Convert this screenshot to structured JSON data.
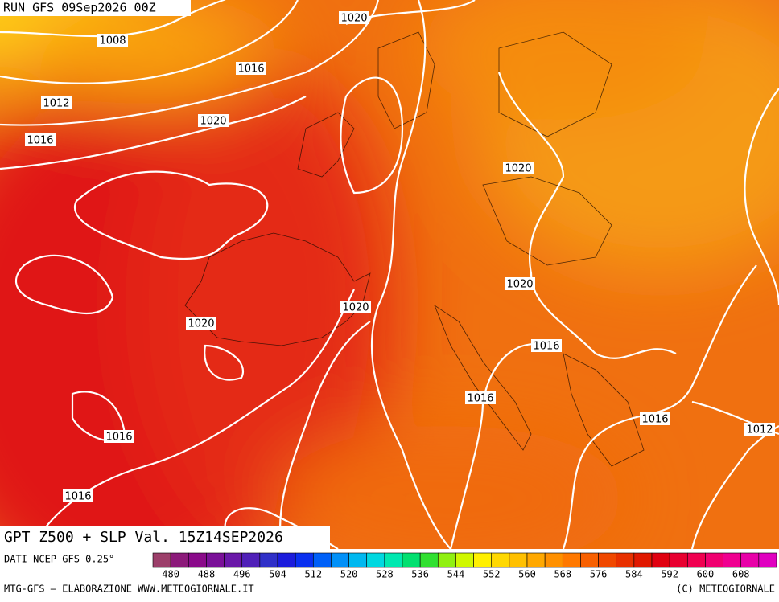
{
  "header": {
    "run": "RUN GFS 09Sep2026 00Z",
    "title": "GPT Z500 + SLP Val. 15Z14SEP2026"
  },
  "isobar_labels": [
    1020,
    1008,
    1016,
    1012,
    1020,
    1016,
    1020,
    1020,
    1020,
    1020,
    1016,
    1016,
    1016,
    1012,
    1016,
    1016
  ],
  "colorbar": {
    "caption": "DATI NCEP GFS 0.25°",
    "colors": [
      "#9c3f6a",
      "#8c1a7a",
      "#8a0a8a",
      "#7a1098",
      "#6a18a8",
      "#5020b8",
      "#3030c8",
      "#1c1cdc",
      "#0a30f0",
      "#0060f8",
      "#0090f8",
      "#00b8f0",
      "#00d8e0",
      "#00e8b0",
      "#00e070",
      "#30e030",
      "#90f010",
      "#d0f800",
      "#fff000",
      "#ffd800",
      "#ffc000",
      "#ffa800",
      "#ff9000",
      "#ff7800",
      "#f86000",
      "#f04800",
      "#e83000",
      "#e01800",
      "#e00010",
      "#e80030",
      "#f00050",
      "#f00070",
      "#f00090",
      "#e800a8",
      "#e000c0"
    ],
    "ticks": [
      480,
      488,
      496,
      504,
      512,
      520,
      528,
      536,
      544,
      552,
      560,
      568,
      576,
      584,
      592,
      600,
      608
    ]
  },
  "footer": {
    "left": "MTG-GFS — ELABORAZIONE WWW.METEOGIORNALE.IT",
    "right": "(C) METEOGIORNALE"
  }
}
